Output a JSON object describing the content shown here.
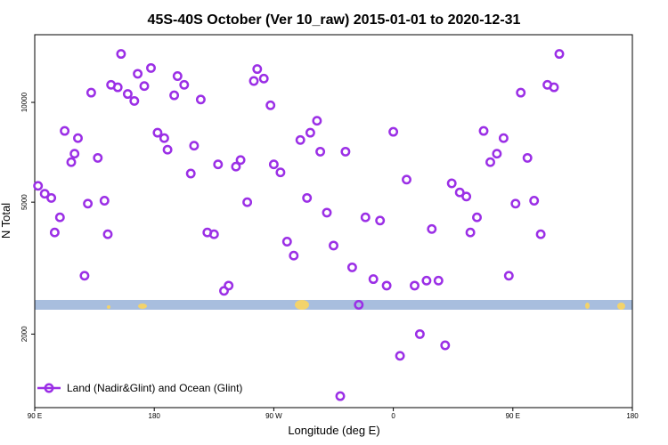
{
  "chart_data": {
    "type": "scatter",
    "title": "45S-40S October (Ver 10_raw)   2015-01-01 to 2020-12-31",
    "xlabel": "Longitude (deg E)",
    "ylabel": "N Total",
    "x_scale": "linear",
    "y_scale": "log",
    "xlim": [
      90,
      540
    ],
    "ylim": [
      1200,
      16000
    ],
    "x_ticks": [
      {
        "value": 90,
        "label": "90 E"
      },
      {
        "value": 180,
        "label": "180"
      },
      {
        "value": 270,
        "label": "90 W"
      },
      {
        "value": 360,
        "label": "0"
      },
      {
        "value": 450,
        "label": "90 E"
      },
      {
        "value": 540,
        "label": "180"
      }
    ],
    "y_ticks": [
      {
        "value": 2000,
        "label": "2000"
      },
      {
        "value": 5000,
        "label": "5000"
      },
      {
        "value": 10000,
        "label": "10000"
      }
    ],
    "legend": {
      "position": "bottom-left",
      "entries": [
        "Land (Nadir&Glint) and Ocean (Glint)"
      ]
    },
    "grid": false,
    "map_strip": {
      "ocean_color": "#a8bede",
      "land_color": "#f3d36b"
    },
    "colors": {
      "series": "#9b2fe6"
    },
    "series": [
      {
        "name": "Land (Nadir&Glint) and Ocean (Glint)",
        "points": [
          [
            92.5,
            5600
          ],
          [
            97.5,
            5300
          ],
          [
            102.5,
            5150
          ],
          [
            105,
            4050
          ],
          [
            112.5,
            8200
          ],
          [
            117.5,
            6600
          ],
          [
            109,
            4500
          ],
          [
            122.5,
            7800
          ],
          [
            120,
            7000
          ],
          [
            127.5,
            3000
          ],
          [
            130,
            4950
          ],
          [
            132.5,
            10700
          ],
          [
            137.5,
            6800
          ],
          [
            142.5,
            5050
          ],
          [
            145,
            4000
          ],
          [
            147.5,
            11300
          ],
          [
            152.5,
            11100
          ],
          [
            155,
            14000
          ],
          [
            160,
            10600
          ],
          [
            165,
            10100
          ],
          [
            167.5,
            12200
          ],
          [
            172.5,
            11200
          ],
          [
            177.5,
            12700
          ],
          [
            182.5,
            8100
          ],
          [
            187.5,
            7800
          ],
          [
            190,
            7200
          ],
          [
            195,
            10500
          ],
          [
            197.5,
            12000
          ],
          [
            202.5,
            11300
          ],
          [
            207.5,
            6100
          ],
          [
            210,
            7400
          ],
          [
            215,
            10200
          ],
          [
            220,
            4050
          ],
          [
            225,
            4000
          ],
          [
            228,
            6500
          ],
          [
            232.5,
            2700
          ],
          [
            236,
            2800
          ],
          [
            241.5,
            6400
          ],
          [
            245,
            6700
          ],
          [
            250,
            5000
          ],
          [
            255,
            11600
          ],
          [
            257.5,
            12600
          ],
          [
            262.5,
            11800
          ],
          [
            267.5,
            9800
          ],
          [
            270,
            6500
          ],
          [
            275,
            6150
          ],
          [
            280,
            3800
          ],
          [
            285,
            3450
          ],
          [
            290,
            7700
          ],
          [
            295,
            5150
          ],
          [
            297.5,
            8100
          ],
          [
            302.5,
            8800
          ],
          [
            305,
            7100
          ],
          [
            310,
            4650
          ],
          [
            315,
            3700
          ],
          [
            320,
            1300
          ],
          [
            324,
            7100
          ],
          [
            329,
            3180
          ],
          [
            334,
            2450
          ],
          [
            339,
            4500
          ],
          [
            345,
            2930
          ],
          [
            350,
            4400
          ],
          [
            355,
            2800
          ],
          [
            360,
            8150
          ],
          [
            365,
            1720
          ],
          [
            370,
            5850
          ],
          [
            376,
            2800
          ],
          [
            380,
            2000
          ],
          [
            385,
            2900
          ],
          [
            389,
            4150
          ],
          [
            394,
            2900
          ],
          [
            399,
            1850
          ],
          [
            404,
            5700
          ],
          [
            410,
            5350
          ],
          [
            415,
            5200
          ],
          [
            418,
            4050
          ],
          [
            423,
            4500
          ],
          [
            428,
            8200
          ],
          [
            433,
            6600
          ],
          [
            438,
            7000
          ],
          [
            443,
            7800
          ],
          [
            447,
            3000
          ],
          [
            452,
            4950
          ],
          [
            456,
            10700
          ],
          [
            461,
            6800
          ],
          [
            466,
            5050
          ],
          [
            471,
            4000
          ],
          [
            476,
            11300
          ],
          [
            481,
            11100
          ],
          [
            485,
            14000
          ]
        ]
      }
    ]
  }
}
